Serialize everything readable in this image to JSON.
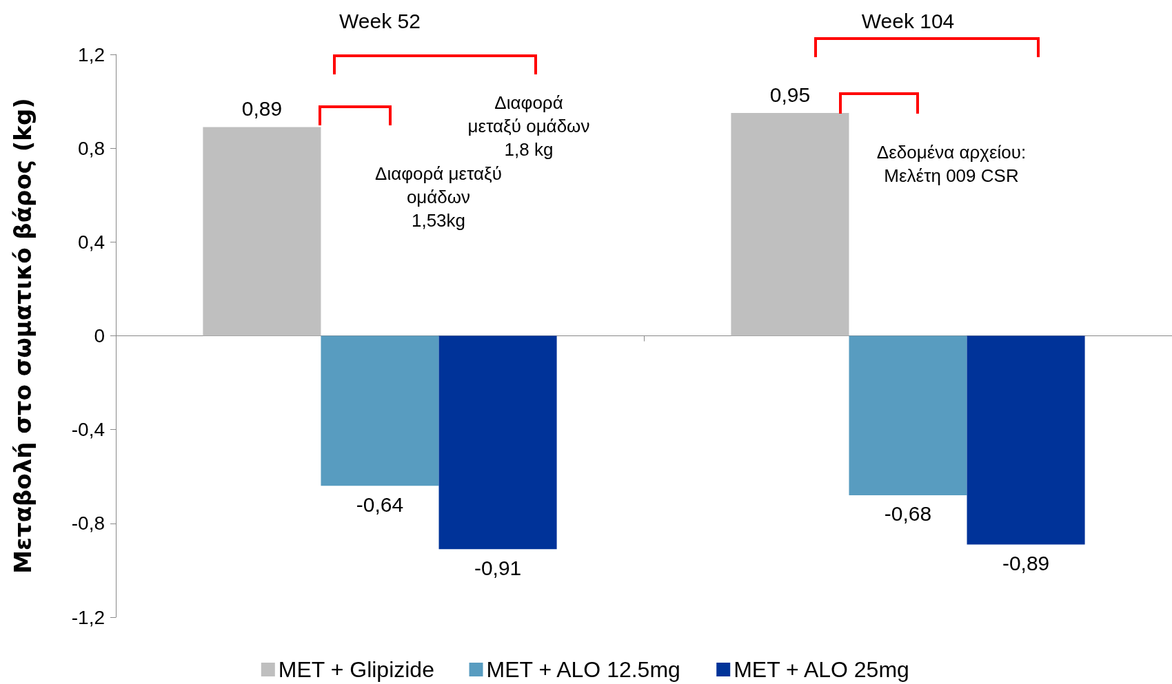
{
  "chart_data": {
    "type": "bar",
    "ylabel": "Μεταβολή στο σωματικό βάρος (kg)",
    "categories": [
      "Week 52",
      "Week 104"
    ],
    "series": [
      {
        "name": "MET + Glipizide",
        "color": "#bfbfbf",
        "values": [
          0.89,
          0.95
        ],
        "value_labels": [
          "0,89",
          "0,95"
        ]
      },
      {
        "name": "MET + ALO 12.5mg",
        "color": "#589cc0",
        "values": [
          -0.64,
          -0.68
        ],
        "value_labels": [
          "-0,64",
          "-0,68"
        ]
      },
      {
        "name": "MET + ALO 25mg",
        "color": "#003399",
        "values": [
          -0.91,
          -0.89
        ],
        "value_labels": [
          "-0,91",
          "-0,89"
        ]
      }
    ],
    "ylim": [
      -1.2,
      1.2
    ],
    "yticks": [
      {
        "value": -1.2,
        "label": "-1,2"
      },
      {
        "value": -0.8,
        "label": "-0,8"
      },
      {
        "value": -0.4,
        "label": "-0,4"
      },
      0,
      {
        "value": 0.4,
        "label": "0,4"
      },
      {
        "value": 0.8,
        "label": "0,8"
      },
      {
        "value": 1.2,
        "label": "1,2"
      }
    ],
    "legend": "bottom",
    "annotations": [
      "Διαφορά μεταξύ\nομάδων\n1,53kg",
      "Διαφορά\nμεταξύ ομάδων\n1,8 kg",
      "Δεδομένα αρχείου:\nΜελέτη 009 CSR"
    ]
  }
}
